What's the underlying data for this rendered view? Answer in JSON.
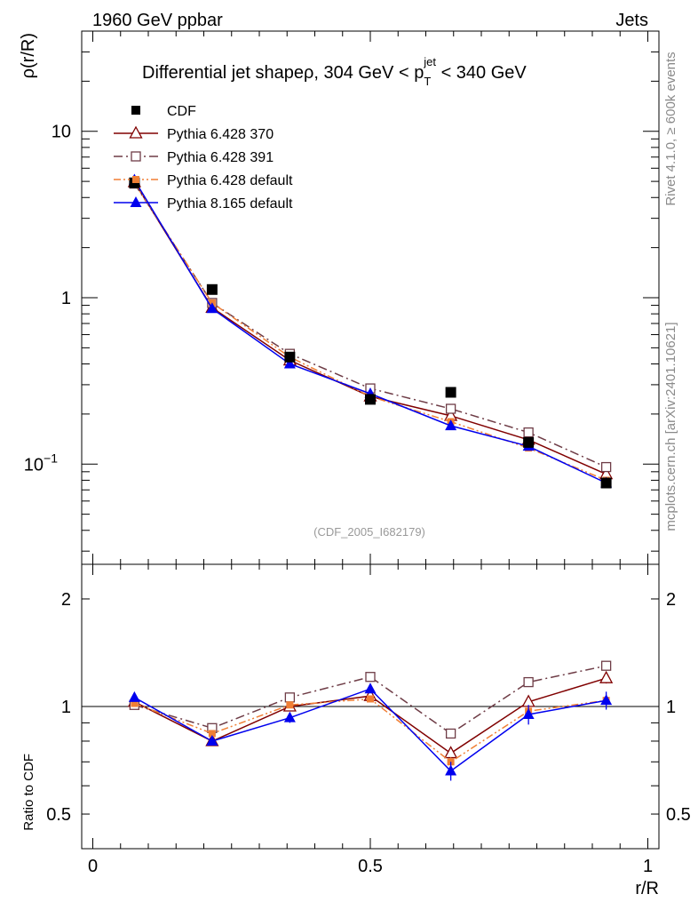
{
  "header": {
    "left_label": "1960 GeV ppbar",
    "right_label": "Jets"
  },
  "side_text": {
    "rivet": "Rivet 4.1.0, ≥ 600k events",
    "mcplots": "mcplots.cern.ch [arXiv:2401.10621]"
  },
  "analysis_tag": "(CDF_2005_I682179)",
  "chart_data": [
    {
      "type": "line",
      "title_prefix": "Differential jet shapeρ, 304 GeV < p",
      "title_sub": "T",
      "title_sup": "jet",
      "title_suffix": " < 340 GeV",
      "ylabel": "ρ(r/R)",
      "xlabel": "",
      "yscale": "log",
      "ylim": [
        0.025,
        40
      ],
      "xlim": [
        -0.02,
        1.02
      ],
      "y_ticks": [
        {
          "value": 0.1,
          "base": "10",
          "exp": "−1"
        },
        {
          "value": 1,
          "base": "1",
          "exp": ""
        },
        {
          "value": 10,
          "base": "10",
          "exp": ""
        }
      ],
      "x": [
        0.075,
        0.215,
        0.355,
        0.5,
        0.645,
        0.785,
        0.925
      ],
      "series": [
        {
          "name": "CDF",
          "color": "#000000",
          "marker": "square-filled",
          "line": "none",
          "values": [
            4.9,
            1.12,
            0.44,
            0.245,
            0.27,
            0.135,
            0.077
          ]
        },
        {
          "name": "Pythia 6.428 370",
          "color": "#800000",
          "marker": "triangle-open",
          "line": "solid",
          "values": [
            4.95,
            0.87,
            0.42,
            0.255,
            0.195,
            0.14,
            0.087
          ]
        },
        {
          "name": "Pythia 6.428 391",
          "color": "#6e3c46",
          "marker": "square-open",
          "line": "dashdot",
          "values": [
            4.85,
            0.93,
            0.46,
            0.285,
            0.215,
            0.155,
            0.096
          ]
        },
        {
          "name": "Pythia 6.428 default",
          "color": "#f07f35",
          "marker": "square-filled-small",
          "line": "dashdotdot",
          "values": [
            4.9,
            0.93,
            0.44,
            0.255,
            0.18,
            0.125,
            0.08
          ]
        },
        {
          "name": "Pythia 8.165 default",
          "color": "#0000ee",
          "marker": "triangle-filled",
          "line": "solid",
          "values": [
            5.1,
            0.86,
            0.4,
            0.265,
            0.17,
            0.128,
            0.077
          ]
        }
      ]
    },
    {
      "type": "line",
      "title": "",
      "ylabel": "Ratio to CDF",
      "xlabel": "r/R",
      "yscale": "log",
      "ylim": [
        0.4,
        2.5
      ],
      "xlim": [
        -0.02,
        1.02
      ],
      "y_ticks": [
        {
          "value": 0.5,
          "label": "0.5"
        },
        {
          "value": 1,
          "label": "1"
        },
        {
          "value": 2,
          "label": "2"
        }
      ],
      "x_ticks": [
        {
          "value": 0,
          "label": "0"
        },
        {
          "value": 0.5,
          "label": "0.5"
        },
        {
          "value": 1,
          "label": "1"
        }
      ],
      "reference_line": 1,
      "x": [
        0.075,
        0.215,
        0.355,
        0.5,
        0.645,
        0.785,
        0.925
      ],
      "series": [
        {
          "name": "Pythia 6.428 370",
          "color": "#800000",
          "marker": "triangle-open",
          "line": "solid",
          "values": [
            1.03,
            0.8,
            1.0,
            1.07,
            0.74,
            1.03,
            1.2
          ],
          "errors": [
            0,
            0,
            0,
            0,
            0.02,
            0.03,
            0.04
          ]
        },
        {
          "name": "Pythia 6.428 391",
          "color": "#6e3c46",
          "marker": "square-open",
          "line": "dashdot",
          "values": [
            1.01,
            0.87,
            1.06,
            1.21,
            0.84,
            1.17,
            1.3
          ],
          "errors": [
            0,
            0,
            0,
            0,
            0.02,
            0.03,
            0.04
          ]
        },
        {
          "name": "Pythia 6.428 default",
          "color": "#f07f35",
          "marker": "square-filled-small",
          "line": "dashdotdot",
          "values": [
            1.02,
            0.84,
            1.01,
            1.05,
            0.7,
            0.97,
            1.04
          ],
          "errors": [
            0,
            0,
            0,
            0,
            0.02,
            0.03,
            0.04
          ]
        },
        {
          "name": "Pythia 8.165 default",
          "color": "#0000ee",
          "marker": "triangle-filled",
          "line": "solid",
          "values": [
            1.06,
            0.8,
            0.93,
            1.12,
            0.66,
            0.95,
            1.04
          ],
          "errors": [
            0,
            0,
            0.03,
            0.03,
            0.04,
            0.06,
            0.06
          ]
        }
      ]
    }
  ]
}
